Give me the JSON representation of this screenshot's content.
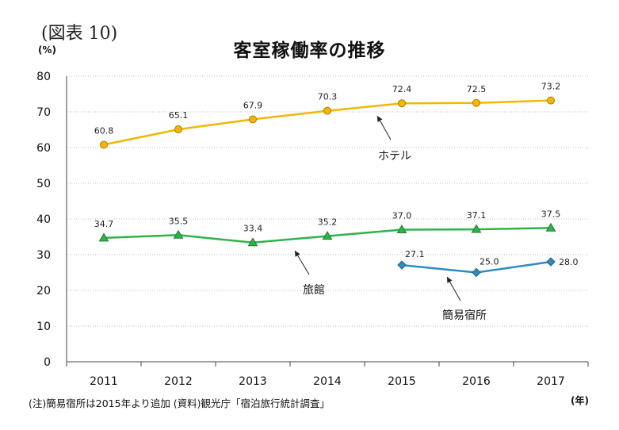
{
  "figure_label": "(図表 10)",
  "footnote": "(注)簡易宿所は2015年より追加 (資料)観光庁「宿泊旅行統計調査」",
  "chart_data": {
    "type": "line",
    "title": "客室稼働率の推移",
    "ylabel": "(%)",
    "xlabel": "(年)",
    "ylim": [
      0,
      80
    ],
    "yticks": [
      0,
      10,
      20,
      30,
      40,
      50,
      60,
      70,
      80
    ],
    "grid": true,
    "categories": [
      "2011",
      "2012",
      "2013",
      "2014",
      "2015",
      "2016",
      "2017"
    ],
    "series": [
      {
        "name": "ホテル",
        "color": "#f2b705",
        "marker": "circle",
        "values": [
          60.8,
          65.1,
          67.9,
          70.3,
          72.4,
          72.5,
          73.2
        ],
        "labels": [
          "60.8",
          "65.1",
          "67.9",
          "70.3",
          "72.4",
          "72.5",
          "73.2"
        ]
      },
      {
        "name": "旅館",
        "color": "#2fb34a",
        "marker": "triangle",
        "values": [
          34.7,
          35.5,
          33.4,
          35.2,
          37.0,
          37.1,
          37.5
        ],
        "labels": [
          "34.7",
          "35.5",
          "33.4",
          "35.2",
          "37.0",
          "37.1",
          "37.5"
        ]
      },
      {
        "name": "簡易宿所",
        "color": "#2e8bc0",
        "marker": "diamond",
        "values": [
          null,
          null,
          null,
          null,
          27.1,
          25.0,
          28.0
        ],
        "labels": [
          null,
          null,
          null,
          null,
          "27.1",
          "25.0",
          "28.0"
        ]
      }
    ]
  }
}
